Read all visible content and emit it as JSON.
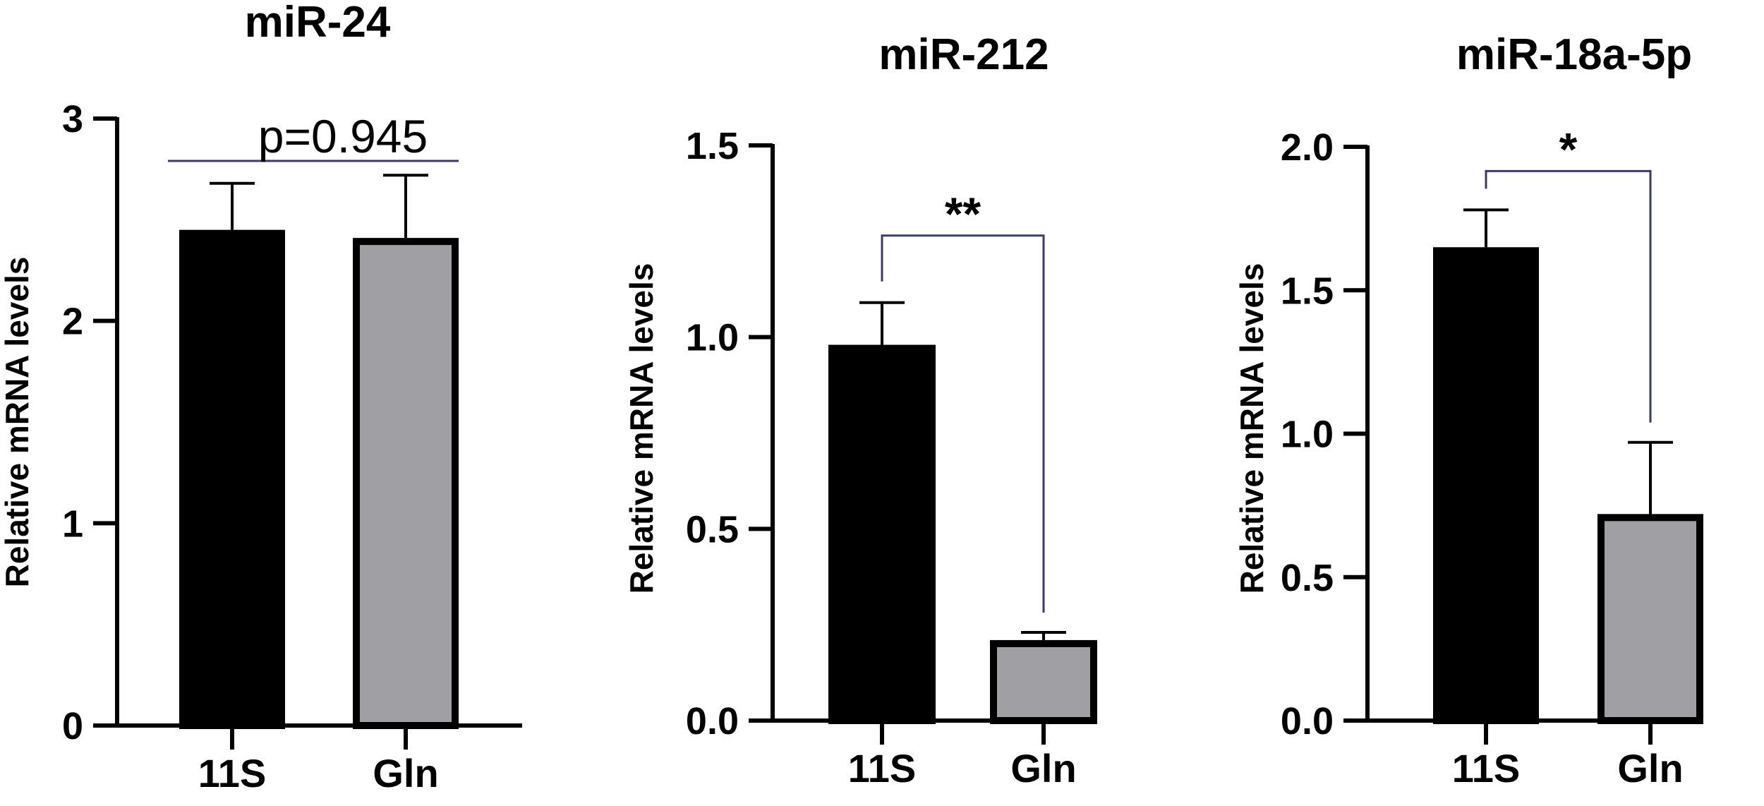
{
  "colors": {
    "group_1": "#000000",
    "group_2": "#a09fa4",
    "axis": "#000000",
    "significance_bracket": "#3d3b6e"
  },
  "chart_data": [
    {
      "type": "bar",
      "title": "miR-24",
      "ylabel": "Relative  mRNA levels",
      "categories": [
        "11S",
        "Gln"
      ],
      "values": [
        2.45,
        2.41
      ],
      "error_bars": [
        0.23,
        0.31
      ],
      "ylim": [
        0,
        3
      ],
      "yticks": [
        "0",
        "1",
        "2",
        "3"
      ],
      "grid": false,
      "significance": {
        "label": "p=0.945",
        "style": "line"
      }
    },
    {
      "type": "bar",
      "title": "miR-212",
      "ylabel": "Relative  mRNA levels",
      "categories": [
        "11S",
        "Gln"
      ],
      "values": [
        0.98,
        0.21
      ],
      "error_bars": [
        0.11,
        0.02
      ],
      "ylim": [
        0,
        1.5
      ],
      "yticks": [
        "0.0",
        "0.5",
        "1.0",
        "1.5"
      ],
      "grid": false,
      "significance": {
        "label": "**",
        "style": "bracket"
      }
    },
    {
      "type": "bar",
      "title": "miR-18a-5p",
      "ylabel": "Relative  mRNA levels",
      "categories": [
        "11S",
        "Gln"
      ],
      "values": [
        1.65,
        0.72
      ],
      "error_bars": [
        0.13,
        0.25
      ],
      "ylim": [
        0,
        2.0
      ],
      "yticks": [
        "0.0",
        "0.5",
        "1.0",
        "1.5",
        "2.0"
      ],
      "grid": false,
      "significance": {
        "label": "*",
        "style": "bracket"
      }
    }
  ]
}
